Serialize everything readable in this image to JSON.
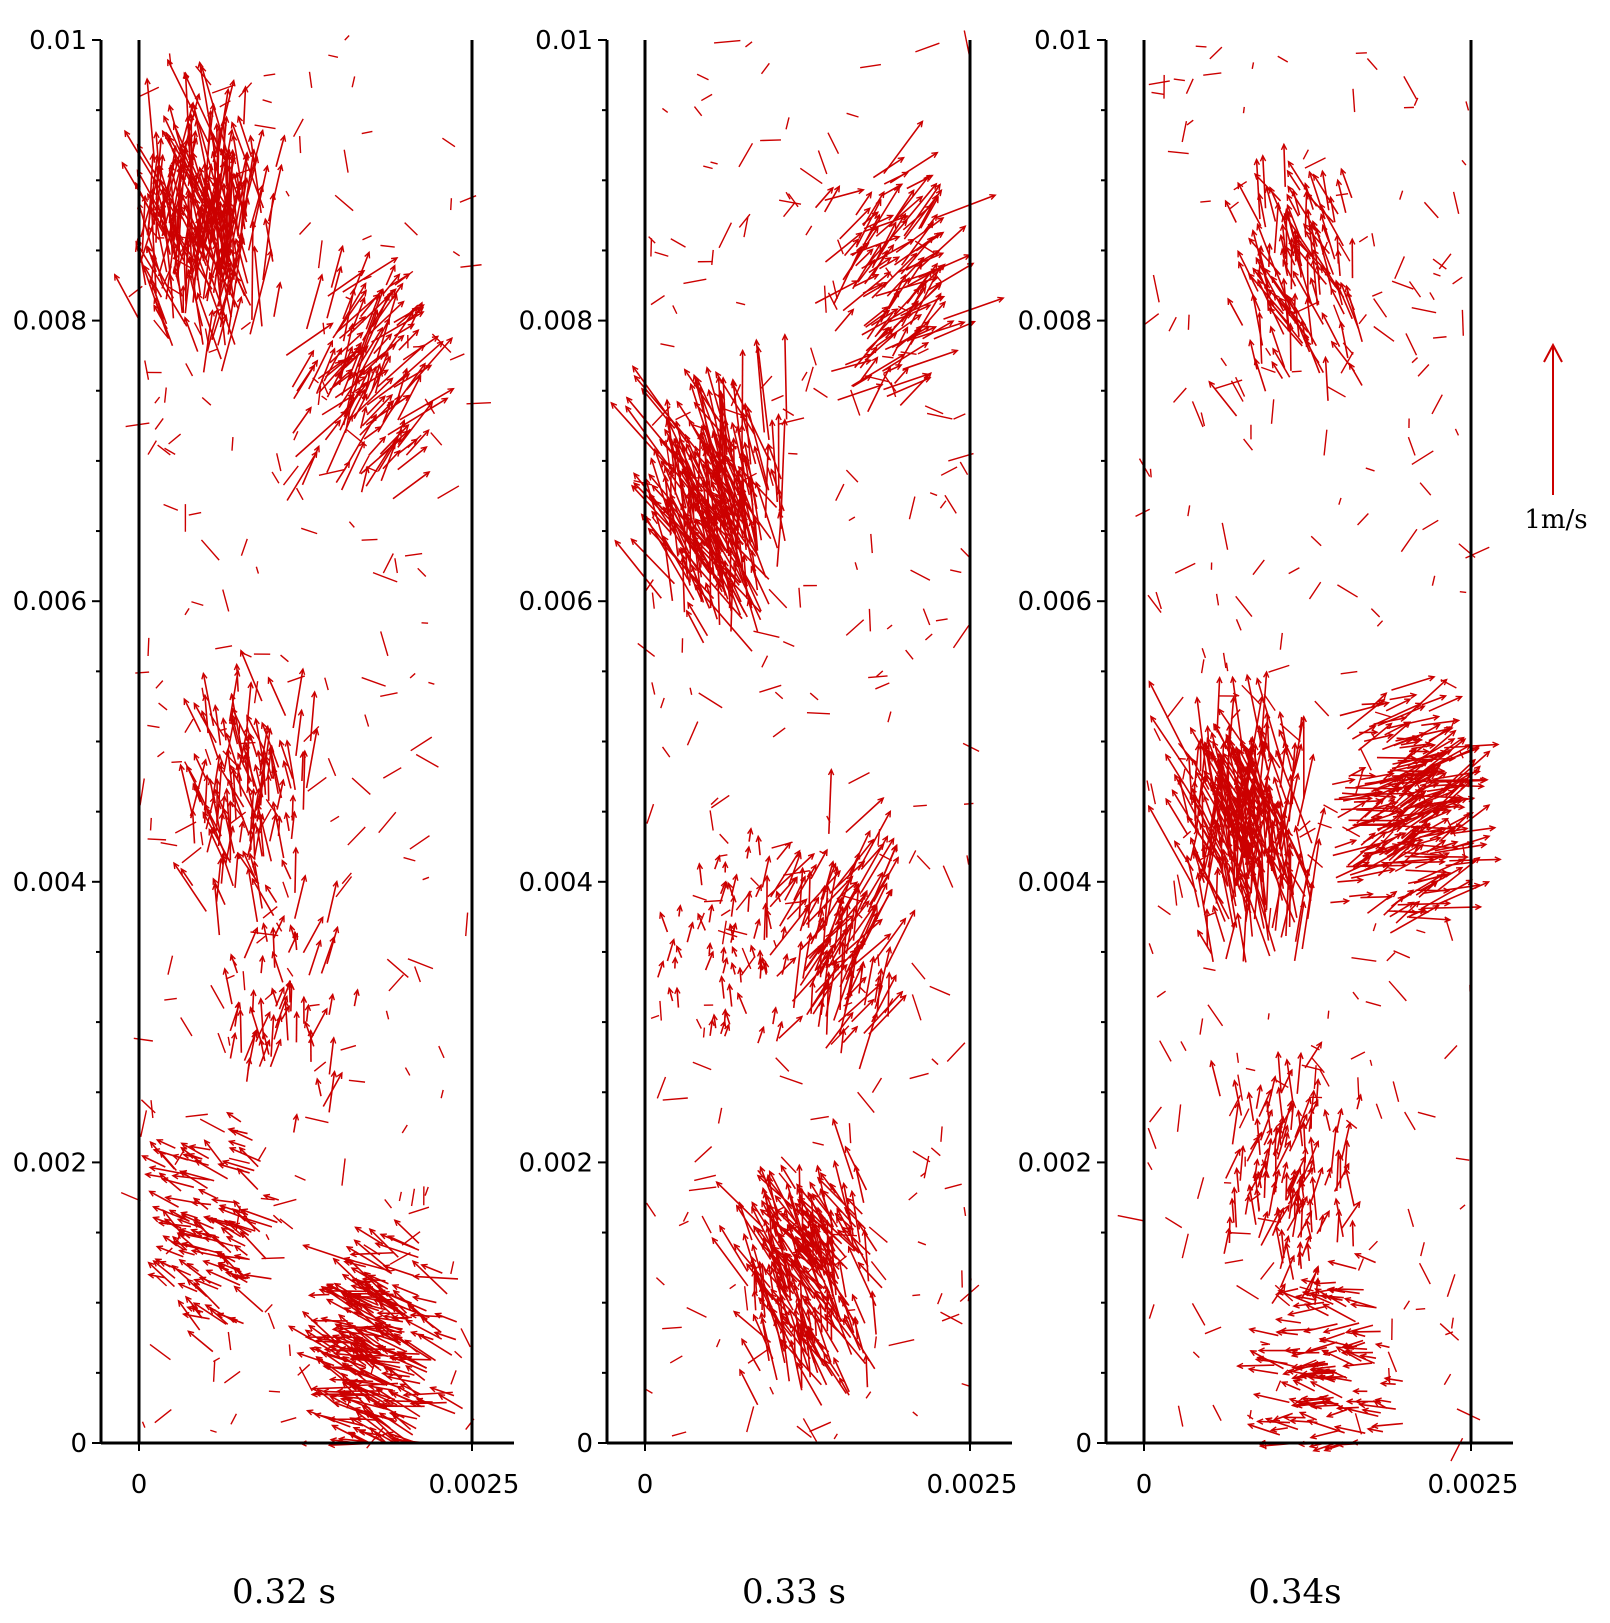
{
  "figure": {
    "caption_times": [
      "0.32 s",
      "0.33 s",
      "0.34s"
    ],
    "scale_vector": {
      "label": "1m/s",
      "value": 1,
      "unit": "m/s"
    }
  },
  "chart_data": [
    {
      "type": "vector-field",
      "caption": "0.32 s",
      "xlim": [
        0,
        0.0025
      ],
      "ylim": [
        0,
        0.01
      ],
      "x_ticks": [
        0,
        0.0025
      ],
      "x_tick_labels": [
        "0",
        "0.0025"
      ],
      "y_ticks": [
        0,
        0.002,
        0.004,
        0.006,
        0.008,
        0.01
      ],
      "y_tick_labels": [
        "0",
        "0.002",
        "0.004",
        "0.006",
        "0.008",
        "0.01"
      ],
      "vector_color": "#cc0000",
      "clusters": [
        {
          "x": 0.0005,
          "y": 0.0085,
          "angle": 97,
          "speed": 0.85,
          "density": "high"
        },
        {
          "x": 0.0016,
          "y": 0.0075,
          "angle": 55,
          "speed": 0.6,
          "density": "medium"
        },
        {
          "x": 0.0008,
          "y": 0.0045,
          "angle": 100,
          "speed": 0.5,
          "density": "medium"
        },
        {
          "x": 0.0011,
          "y": 0.003,
          "angle": 85,
          "speed": 0.35,
          "density": "low"
        },
        {
          "x": 0.0006,
          "y": 0.0015,
          "angle": 150,
          "speed": 0.3,
          "density": "medium"
        },
        {
          "x": 0.0019,
          "y": 0.0006,
          "angle": 160,
          "speed": 0.45,
          "density": "high"
        }
      ]
    },
    {
      "type": "vector-field",
      "caption": "0.33 s",
      "xlim": [
        0,
        0.0025
      ],
      "ylim": [
        0,
        0.01
      ],
      "x_ticks": [
        0,
        0.0025
      ],
      "x_tick_labels": [
        "0",
        "0.0025"
      ],
      "y_ticks": [
        0,
        0.002,
        0.004,
        0.006,
        0.008,
        0.01
      ],
      "y_tick_labels": [
        "0",
        "0.002",
        "0.004",
        "0.006",
        "0.008",
        "0.01"
      ],
      "vector_color": "#cc0000",
      "clusters": [
        {
          "x": 0.0006,
          "y": 0.0065,
          "angle": 110,
          "speed": 0.85,
          "density": "high"
        },
        {
          "x": 0.0018,
          "y": 0.0082,
          "angle": 40,
          "speed": 0.55,
          "density": "medium"
        },
        {
          "x": 0.0014,
          "y": 0.0035,
          "angle": 65,
          "speed": 0.6,
          "density": "medium"
        },
        {
          "x": 0.0013,
          "y": 0.0011,
          "angle": 115,
          "speed": 0.55,
          "density": "high"
        },
        {
          "x": 0.0006,
          "y": 0.0035,
          "angle": 90,
          "speed": 0.15,
          "density": "low"
        }
      ]
    },
    {
      "type": "vector-field",
      "caption": "0.34s",
      "xlim": [
        0,
        0.0025
      ],
      "ylim": [
        0,
        0.01
      ],
      "x_ticks": [
        0,
        0.0025
      ],
      "x_tick_labels": [
        "0",
        "0.0025"
      ],
      "y_ticks": [
        0,
        0.002,
        0.004,
        0.006,
        0.008,
        0.01
      ],
      "y_tick_labels": [
        "0",
        "0.002",
        "0.004",
        "0.006",
        "0.008",
        "0.01"
      ],
      "vector_color": "#cc0000",
      "clusters": [
        {
          "x": 0.0008,
          "y": 0.0042,
          "angle": 100,
          "speed": 0.85,
          "density": "high"
        },
        {
          "x": 0.0019,
          "y": 0.0045,
          "angle": 20,
          "speed": 0.5,
          "density": "high"
        },
        {
          "x": 0.0012,
          "y": 0.0082,
          "angle": 110,
          "speed": 0.5,
          "density": "medium"
        },
        {
          "x": 0.0011,
          "y": 0.0018,
          "angle": 80,
          "speed": 0.35,
          "density": "medium"
        },
        {
          "x": 0.0015,
          "y": 0.0005,
          "angle": 175,
          "speed": 0.3,
          "density": "medium"
        }
      ]
    }
  ]
}
